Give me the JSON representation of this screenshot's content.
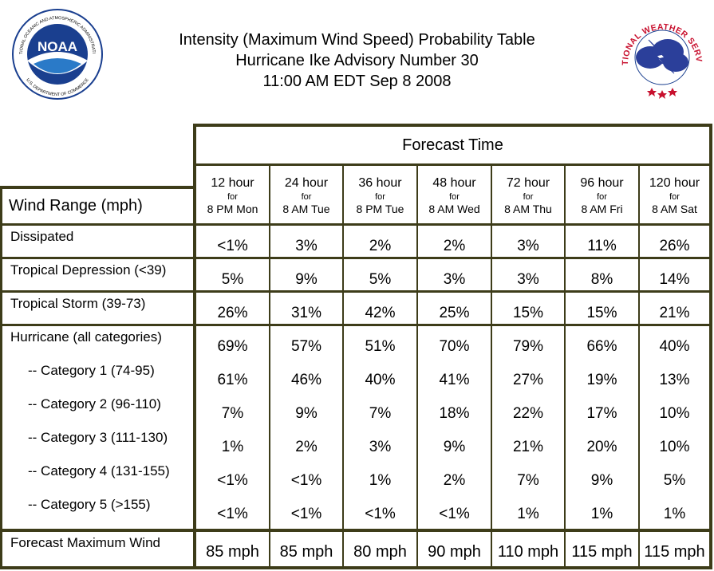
{
  "header": {
    "title_line1": "Intensity (Maximum Wind Speed) Probability Table",
    "title_line2": "Hurricane Ike Advisory Number 30",
    "title_line3": "11:00 AM EDT Sep 8 2008"
  },
  "logos": {
    "noaa": {
      "text": "NOAA",
      "ring_text": "NATIONAL OCEANIC AND ATMOSPHERIC ADMINISTRATION",
      "bottom_text": "U.S. DEPARTMENT OF COMMERCE"
    },
    "nws": {
      "ring_text": "NATIONAL WEATHER SERVICE"
    }
  },
  "table": {
    "forecast_time_label": "Forecast Time",
    "row_header_label": "Wind Range (mph)",
    "columns": [
      {
        "hour": "12 hour",
        "for": "for",
        "when": "8 PM Mon"
      },
      {
        "hour": "24 hour",
        "for": "for",
        "when": "8 AM Tue"
      },
      {
        "hour": "36 hour",
        "for": "for",
        "when": "8 PM Tue"
      },
      {
        "hour": "48 hour",
        "for": "for",
        "when": "8 AM Wed"
      },
      {
        "hour": "72 hour",
        "for": "for",
        "when": "8 AM Thu"
      },
      {
        "hour": "96 hour",
        "for": "for",
        "when": "8 AM Fri"
      },
      {
        "hour": "120 hour",
        "for": "for",
        "when": "8 AM Sat"
      }
    ],
    "rows": [
      {
        "label": "Dissipated",
        "values": [
          "<1%",
          "3%",
          "2%",
          "2%",
          "3%",
          "11%",
          "26%"
        ]
      },
      {
        "label": "Tropical Depression (<39)",
        "values": [
          "5%",
          "9%",
          "5%",
          "3%",
          "3%",
          "8%",
          "14%"
        ]
      },
      {
        "label": "Tropical Storm (39-73)",
        "values": [
          "26%",
          "31%",
          "42%",
          "25%",
          "15%",
          "15%",
          "21%"
        ]
      },
      {
        "label": "Hurricane (all categories)",
        "values": [
          "69%",
          "57%",
          "51%",
          "70%",
          "79%",
          "66%",
          "40%"
        ]
      },
      {
        "label": "-- Category 1 (74-95)",
        "values": [
          "61%",
          "46%",
          "40%",
          "41%",
          "27%",
          "19%",
          "13%"
        ]
      },
      {
        "label": "-- Category 2 (96-110)",
        "values": [
          "7%",
          "9%",
          "7%",
          "18%",
          "22%",
          "17%",
          "10%"
        ]
      },
      {
        "label": "-- Category 3 (111-130)",
        "values": [
          "1%",
          "2%",
          "3%",
          "9%",
          "21%",
          "20%",
          "10%"
        ]
      },
      {
        "label": "-- Category 4 (131-155)",
        "values": [
          "<1%",
          "<1%",
          "1%",
          "2%",
          "7%",
          "9%",
          "5%"
        ]
      },
      {
        "label": "-- Category 5 (>155)",
        "values": [
          "<1%",
          "<1%",
          "<1%",
          "<1%",
          "1%",
          "1%",
          "1%"
        ]
      },
      {
        "label": "Forecast Maximum Wind",
        "values": [
          "85 mph",
          "85 mph",
          "80 mph",
          "90 mph",
          "110 mph",
          "115 mph",
          "115 mph"
        ]
      }
    ]
  },
  "colors": {
    "border": "#3d3c19",
    "noaa_blue": "#1a3f8f",
    "nws_red": "#c8102e",
    "cloud": "#2b3f9a"
  }
}
